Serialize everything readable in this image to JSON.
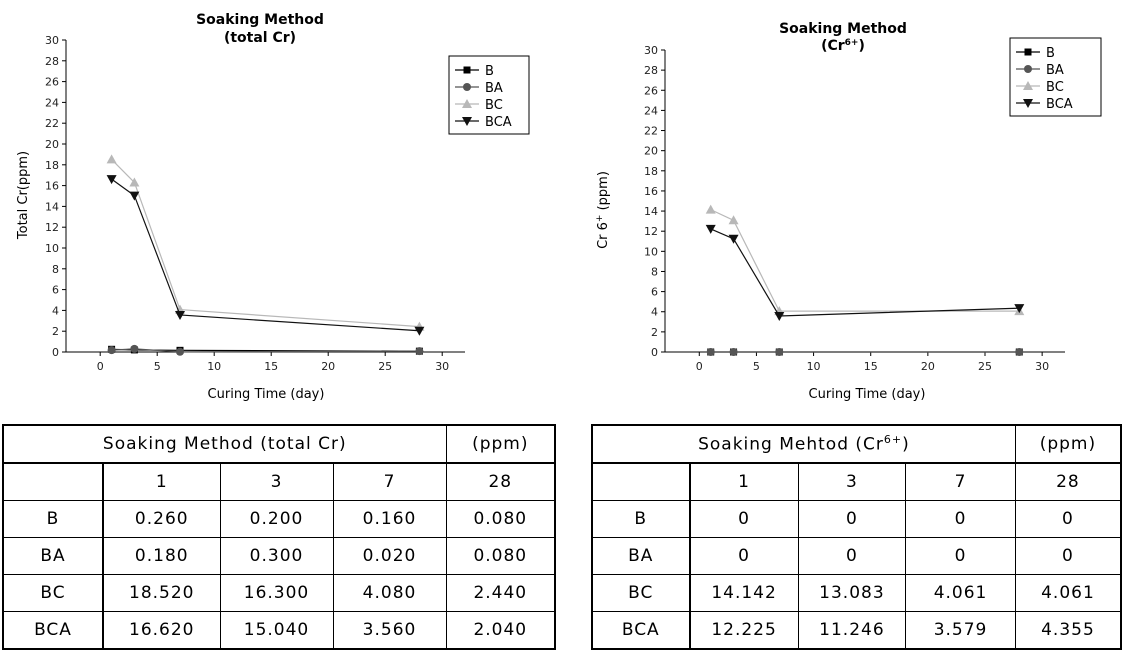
{
  "chart_data": [
    {
      "type": "line",
      "title": "Soaking Method",
      "subtitle": "(total Cr)",
      "xlabel": "Curing Time (day)",
      "ylabel": "Total Cr(ppm)",
      "xlim": [
        -3,
        32
      ],
      "ylim": [
        0,
        30
      ],
      "xticks": [
        0,
        5,
        10,
        15,
        20,
        25,
        30
      ],
      "yticks": [
        0,
        2,
        4,
        6,
        8,
        10,
        12,
        14,
        16,
        18,
        20,
        22,
        24,
        26,
        28,
        30
      ],
      "x": [
        1,
        3,
        7,
        28
      ],
      "legend_position": "top-right",
      "series": [
        {
          "name": "B",
          "marker": "square",
          "color": "#000000",
          "values": [
            0.26,
            0.2,
            0.16,
            0.08
          ]
        },
        {
          "name": "BA",
          "marker": "circle",
          "color": "#555555",
          "values": [
            0.18,
            0.3,
            0.02,
            0.08
          ]
        },
        {
          "name": "BC",
          "marker": "triangle-up",
          "color": "#b8b8b8",
          "values": [
            18.52,
            16.3,
            4.08,
            2.44
          ]
        },
        {
          "name": "BCA",
          "marker": "triangle-down",
          "color": "#111111",
          "values": [
            16.62,
            15.04,
            3.56,
            2.04
          ]
        }
      ]
    },
    {
      "type": "line",
      "title": "Soaking Method",
      "subtitle": "(Cr",
      "subtitle_sup": "6+",
      "subtitle_end": ")",
      "xlabel": "Curing Time (day)",
      "ylabel": "Cr 6",
      "ylabel_sup": "+",
      "ylabel_end": " (ppm)",
      "xlim": [
        -3,
        32
      ],
      "ylim": [
        0,
        30
      ],
      "xticks": [
        0,
        5,
        10,
        15,
        20,
        25,
        30
      ],
      "yticks": [
        0,
        2,
        4,
        6,
        8,
        10,
        12,
        14,
        16,
        18,
        20,
        22,
        24,
        26,
        28,
        30
      ],
      "x": [
        1,
        3,
        7,
        28
      ],
      "legend_position": "top-right",
      "series": [
        {
          "name": "B",
          "marker": "square",
          "color": "#000000",
          "values": [
            0,
            0,
            0,
            0
          ]
        },
        {
          "name": "BA",
          "marker": "circle",
          "color": "#555555",
          "values": [
            0,
            0,
            0,
            0
          ]
        },
        {
          "name": "BC",
          "marker": "triangle-up",
          "color": "#b8b8b8",
          "values": [
            14.142,
            13.083,
            4.061,
            4.061
          ]
        },
        {
          "name": "BCA",
          "marker": "triangle-down",
          "color": "#111111",
          "values": [
            12.225,
            11.246,
            3.579,
            4.355
          ]
        }
      ]
    }
  ],
  "tables": {
    "left": {
      "title": "Soaking Method (total Cr)",
      "unit": "(ppm)",
      "columns": [
        "1",
        "3",
        "7",
        "28"
      ],
      "rows": [
        {
          "name": "B",
          "values": [
            "0.260",
            "0.200",
            "0.160",
            "0.080"
          ]
        },
        {
          "name": "BA",
          "values": [
            "0.180",
            "0.300",
            "0.020",
            "0.080"
          ]
        },
        {
          "name": "BC",
          "values": [
            "18.520",
            "16.300",
            "4.080",
            "2.440"
          ]
        },
        {
          "name": "BCA",
          "values": [
            "16.620",
            "15.040",
            "3.560",
            "2.040"
          ]
        }
      ]
    },
    "right": {
      "title": "Soaking Mehtod (Cr",
      "title_sup": "6+",
      "title_end": ")",
      "unit": "(ppm)",
      "columns": [
        "1",
        "3",
        "7",
        "28"
      ],
      "rows": [
        {
          "name": "B",
          "values": [
            "0",
            "0",
            "0",
            "0"
          ]
        },
        {
          "name": "BA",
          "values": [
            "0",
            "0",
            "0",
            "0"
          ]
        },
        {
          "name": "BC",
          "values": [
            "14.142",
            "13.083",
            "4.061",
            "4.061"
          ]
        },
        {
          "name": "BCA",
          "values": [
            "12.225",
            "11.246",
            "3.579",
            "4.355"
          ]
        }
      ]
    }
  }
}
